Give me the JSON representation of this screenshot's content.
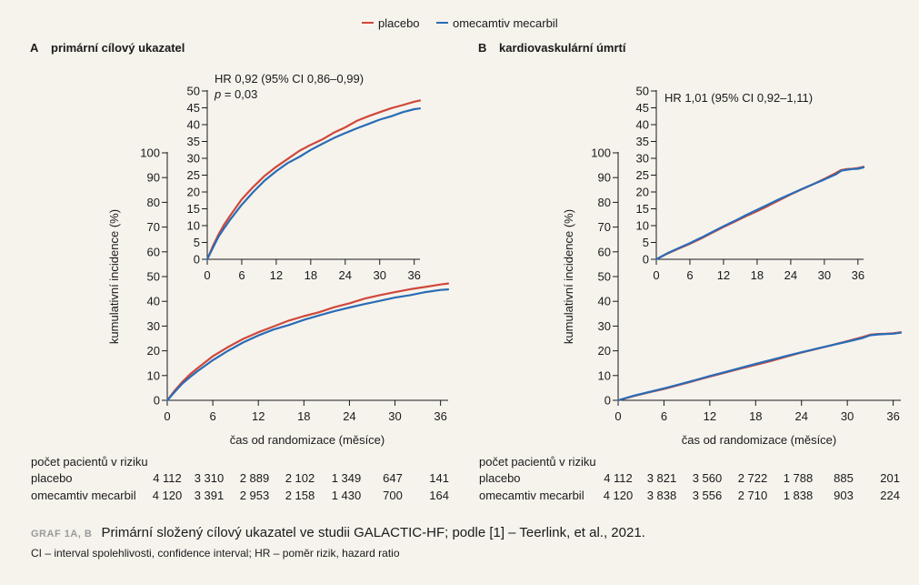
{
  "legend": {
    "items": [
      {
        "label": "placebo",
        "color": "#d0483a"
      },
      {
        "label": "omecamtiv mecarbil",
        "color": "#2a6cb5"
      }
    ]
  },
  "panels": [
    {
      "letter": "A",
      "title": "primární cílový ukazatel"
    },
    {
      "letter": "B",
      "title": "kardiovaskulární úmrtí"
    }
  ],
  "chart_data": [
    {
      "type": "line",
      "title": "primární cílový ukazatel",
      "xlabel": "čas od randomizace (měsíce)",
      "ylabel": "kumulativní incidence (%)",
      "xlim": [
        0,
        37
      ],
      "ylim": [
        0,
        100
      ],
      "xticks": [
        "0",
        "6",
        "12",
        "18",
        "24",
        "30",
        "36"
      ],
      "yticks": [
        "0",
        "10",
        "20",
        "30",
        "40",
        "50",
        "60",
        "70",
        "80",
        "90",
        "100"
      ],
      "series": [
        {
          "name": "placebo",
          "x": [
            0,
            1,
            2,
            3,
            4,
            6,
            8,
            10,
            12,
            14,
            16,
            18,
            20,
            22,
            24,
            26,
            28,
            30,
            32,
            34,
            36,
            37
          ],
          "y": [
            0,
            4,
            7.5,
            10.5,
            13,
            17.8,
            21.5,
            24.8,
            27.5,
            29.8,
            32.2,
            34,
            35.6,
            37.6,
            39.2,
            41.1,
            42.5,
            43.7,
            44.9,
            45.8,
            46.8,
            47.2
          ]
        },
        {
          "name": "omecamtiv mecarbil",
          "x": [
            0,
            1,
            2,
            3,
            4,
            6,
            8,
            10,
            12,
            14,
            16,
            18,
            20,
            22,
            24,
            26,
            28,
            30,
            32,
            34,
            36,
            37
          ],
          "y": [
            0,
            3.5,
            6.8,
            9.4,
            11.8,
            16.2,
            20,
            23.4,
            26.2,
            28.6,
            30.4,
            32.5,
            34.3,
            36,
            37.5,
            38.9,
            40.2,
            41.5,
            42.5,
            43.7,
            44.6,
            44.8
          ]
        }
      ],
      "inset": {
        "xlim": [
          0,
          37
        ],
        "ylim": [
          0,
          50
        ],
        "xticks": [
          "0",
          "6",
          "12",
          "18",
          "24",
          "30",
          "36"
        ],
        "yticks": [
          "0",
          "5",
          "10",
          "15",
          "20",
          "25",
          "30",
          "35",
          "40",
          "45",
          "50"
        ],
        "annotation": [
          "HR 0,92 (95% CI 0,86–0,99)",
          "p = 0,03"
        ]
      },
      "at_risk": {
        "heading": "počet pacientů v riziku",
        "rows": [
          {
            "label": "placebo",
            "values": [
              "4 112",
              "3 310",
              "2 889",
              "2 102",
              "1 349",
              "647",
              "141"
            ]
          },
          {
            "label": "omecamtiv mecarbil",
            "values": [
              "4 120",
              "3 391",
              "2 953",
              "2 158",
              "1 430",
              "700",
              "164"
            ]
          }
        ]
      }
    },
    {
      "type": "line",
      "title": "kardiovaskulární úmrtí",
      "xlabel": "čas od randomizace (měsíce)",
      "ylabel": "kumulativní incidence (%)",
      "xlim": [
        0,
        37
      ],
      "ylim": [
        0,
        100
      ],
      "xticks": [
        "0",
        "6",
        "12",
        "18",
        "24",
        "30",
        "36"
      ],
      "yticks": [
        "0",
        "10",
        "20",
        "30",
        "40",
        "50",
        "60",
        "70",
        "80",
        "90",
        "100"
      ],
      "series": [
        {
          "name": "placebo",
          "x": [
            0,
            2,
            4,
            6,
            8,
            10,
            12,
            14,
            16,
            18,
            20,
            22,
            24,
            26,
            28,
            30,
            32,
            33,
            34,
            35,
            36,
            37
          ],
          "y": [
            0,
            1.7,
            3.2,
            4.6,
            6.2,
            7.9,
            9.6,
            11.2,
            12.8,
            14.3,
            15.9,
            17.6,
            19.3,
            20.8,
            22.3,
            23.9,
            25.6,
            26.5,
            26.8,
            26.9,
            27.1,
            27.5
          ]
        },
        {
          "name": "omecamtiv mecarbil",
          "x": [
            0,
            2,
            4,
            6,
            8,
            10,
            12,
            14,
            16,
            18,
            20,
            22,
            24,
            26,
            28,
            30,
            32,
            33,
            34,
            35,
            36,
            37
          ],
          "y": [
            0,
            1.8,
            3.3,
            4.8,
            6.4,
            8.1,
            9.8,
            11.4,
            13.1,
            14.7,
            16.3,
            17.9,
            19.4,
            20.9,
            22.3,
            23.7,
            25.2,
            26.3,
            26.6,
            26.8,
            26.9,
            27.3
          ]
        }
      ],
      "inset": {
        "xlim": [
          0,
          37
        ],
        "ylim": [
          0,
          50
        ],
        "xticks": [
          "0",
          "6",
          "12",
          "18",
          "24",
          "30",
          "36"
        ],
        "yticks": [
          "0",
          "5",
          "10",
          "15",
          "20",
          "25",
          "30",
          "35",
          "40",
          "45",
          "50"
        ],
        "annotation": [
          "HR 1,01 (95% CI 0,92–1,11)"
        ]
      },
      "at_risk": {
        "heading": "počet pacientů v riziku",
        "rows": [
          {
            "label": "placebo",
            "values": [
              "4 112",
              "3 821",
              "3 560",
              "2 722",
              "1 788",
              "885",
              "201"
            ]
          },
          {
            "label": "omecamtiv mecarbil",
            "values": [
              "4 120",
              "3 838",
              "3 556",
              "2 710",
              "1 838",
              "903",
              "224"
            ]
          }
        ]
      }
    }
  ],
  "caption": {
    "label": "GRAF 1A, B",
    "text": "Primární složený cílový ukazatel ve studii GALACTIC-HF; podle [1] – Teerlink, et al., 2021.",
    "note": "CI – interval spolehlivosti, confidence interval; HR – poměr rizik, hazard ratio"
  }
}
